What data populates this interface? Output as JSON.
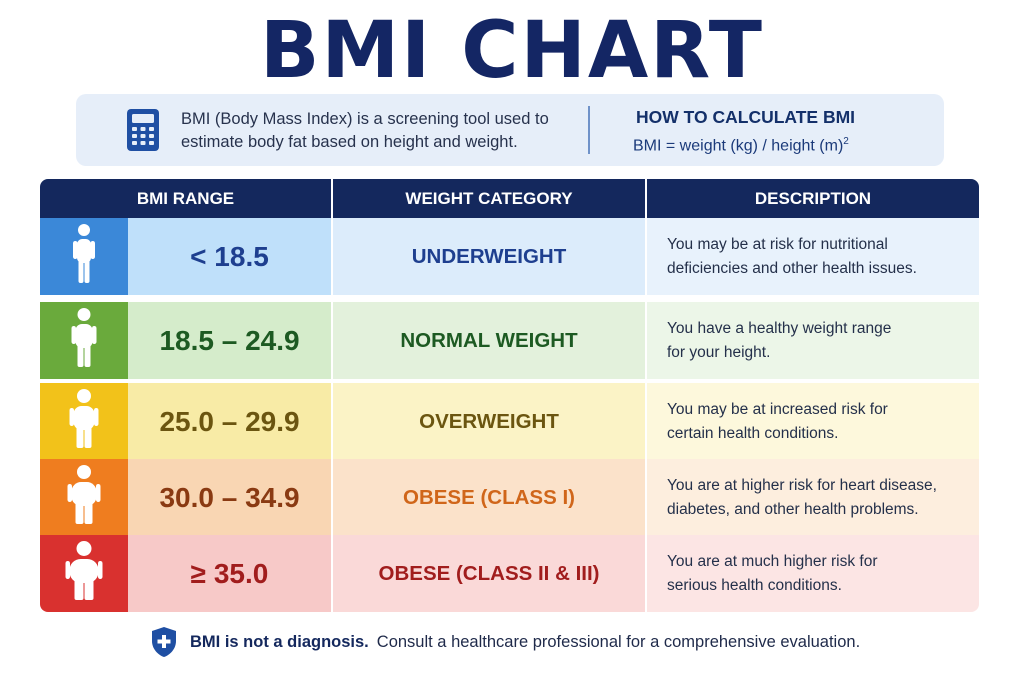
{
  "title": "BMI CHART",
  "info": {
    "icon": "calculator-icon",
    "line1": "BMI (Body Mass Index) is a screening tool used to",
    "line2": "estimate body fat based on height and weight.",
    "howto_title": "HOW TO CALCULATE BMI",
    "formula": "BMI = weight (kg) / height (m)",
    "formula_exp": "2"
  },
  "table": {
    "headers": [
      "BMI RANGE",
      "WEIGHT CATEGORY",
      "DESCRIPTION"
    ],
    "header_color": "#14285d",
    "rows": [
      {
        "range": "< 18.5",
        "category": "UNDERWEIGHT",
        "desc1": "You may be at risk for nutritional",
        "desc2": "deficiencies and other health issues.",
        "icon_color": "#3b88d8",
        "range_bg": "#bfe0fa",
        "cat_bg": "#dcecfb",
        "desc_bg": "#e8f2fc",
        "text_color": "#1e3f8f",
        "figure": "thin"
      },
      {
        "range": "18.5 – 24.9",
        "category": "NORMAL WEIGHT",
        "desc1": "You have a healthy weight range",
        "desc2": "for your height.",
        "icon_color": "#6aaa3c",
        "range_bg": "#d5eccb",
        "cat_bg": "#e3f1dc",
        "desc_bg": "#ecf6e8",
        "text_color": "#1d5a22",
        "figure": "normal"
      },
      {
        "range": "25.0 – 29.9",
        "category": "OVERWEIGHT",
        "desc1": "You may be at increased risk for",
        "desc2": "certain health conditions.",
        "icon_color": "#f2c21a",
        "range_bg": "#f8eba6",
        "cat_bg": "#fbf3c6",
        "desc_bg": "#fdf8dc",
        "text_color": "#6b5510",
        "figure": "over"
      },
      {
        "range": "30.0 – 34.9",
        "category": "OBESE (CLASS I)",
        "desc1": "You are at higher risk for heart disease,",
        "desc2": "diabetes, and other health problems.",
        "icon_color": "#ef7d1f",
        "range_bg": "#f9d6b3",
        "cat_bg": "#fbe2ca",
        "desc_bg": "#fdeede",
        "text_color": "#8a3a12",
        "cat_color": "#d0661a",
        "figure": "obese1"
      },
      {
        "range": "≥ 35.0",
        "category": "OBESE (CLASS II & III)",
        "desc1": "You are at much higher risk for",
        "desc2": "serious health conditions.",
        "icon_color": "#d9312f",
        "range_bg": "#f7c9c8",
        "cat_bg": "#fad9d8",
        "desc_bg": "#fce5e4",
        "text_color": "#a11d1d",
        "figure": "obese2"
      }
    ]
  },
  "footer": {
    "icon": "shield-plus-icon",
    "bold": "BMI is not a diagnosis.",
    "text": "Consult a healthcare professional for a comprehensive evaluation."
  }
}
